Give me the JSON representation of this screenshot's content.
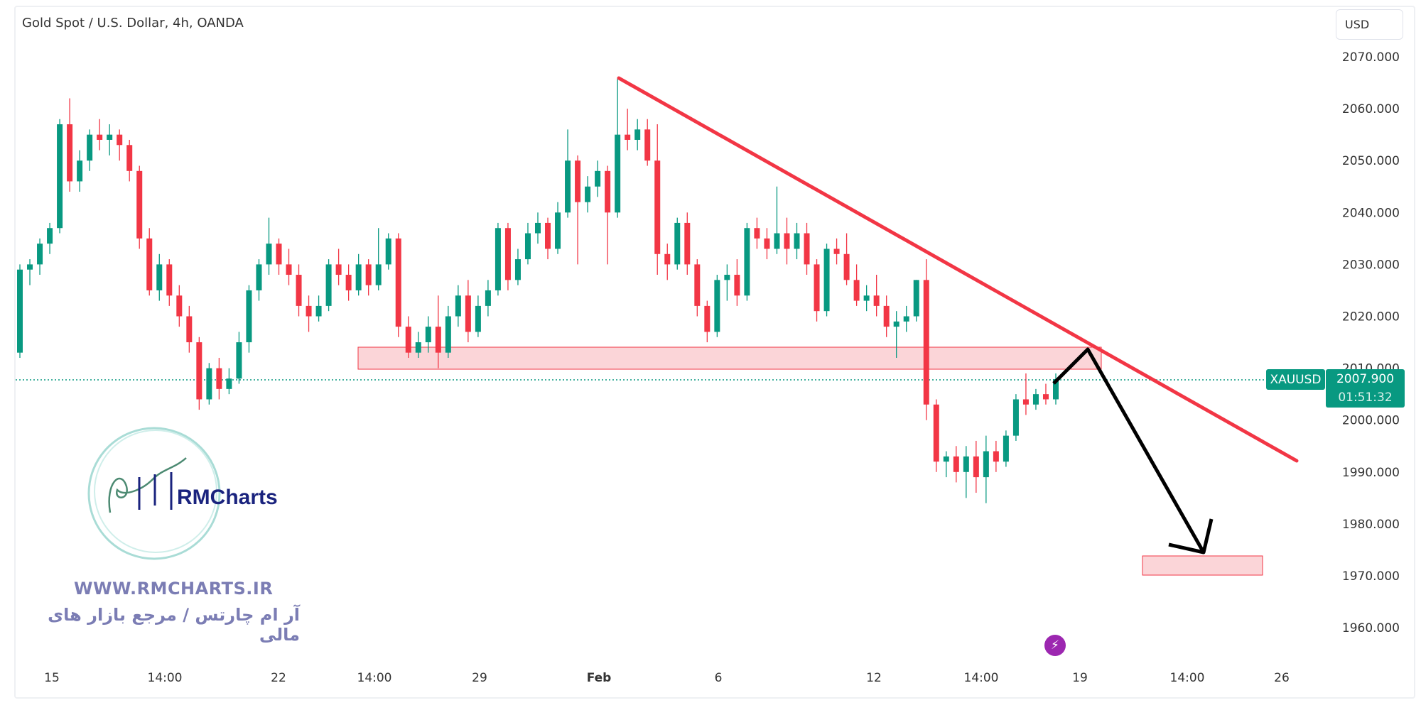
{
  "header": {
    "title": "Gold Spot / U.S. Dollar, 4h, OANDA",
    "currency": "USD"
  },
  "price_label": {
    "symbol": "XAUUSD",
    "price": "2007.900",
    "countdown": "01:51:32",
    "color": "#089981"
  },
  "logo": {
    "text": "RMCharts",
    "website": "WWW.RMCHARTS.IR",
    "tagline": "آر ام چارتس / مرجع بازار های مالی"
  },
  "colors": {
    "up": "#089981",
    "down": "#f23645",
    "trendline": "#f23645",
    "zone_fill": "#fbd5d8"
  },
  "chart_data": {
    "type": "candlestick",
    "title": "Gold Spot / U.S. Dollar, 4h, OANDA",
    "ylim": [
      1953,
      2075
    ],
    "y_ticks": [
      "2070.000",
      "2060.000",
      "2050.000",
      "2040.000",
      "2030.000",
      "2020.000",
      "2010.000",
      "2000.000",
      "1990.000",
      "1980.000",
      "1970.000",
      "1960.000"
    ],
    "x_ticks": [
      "15",
      "14:00",
      "22",
      "14:00",
      "29",
      "Feb",
      "6",
      "12",
      "14:00",
      "19",
      "14:00",
      "26"
    ],
    "last_price": 2007.9,
    "ohlc": [
      [
        2013,
        2030,
        2012,
        2029
      ],
      [
        2029,
        2031,
        2026,
        2030
      ],
      [
        2030,
        2035,
        2028,
        2034
      ],
      [
        2034,
        2038,
        2032,
        2037
      ],
      [
        2037,
        2058,
        2036,
        2057
      ],
      [
        2057,
        2062,
        2044,
        2046
      ],
      [
        2046,
        2052,
        2044,
        2050
      ],
      [
        2050,
        2056,
        2048,
        2055
      ],
      [
        2055,
        2058,
        2052,
        2054
      ],
      [
        2054,
        2057,
        2051,
        2055
      ],
      [
        2055,
        2056,
        2050,
        2053
      ],
      [
        2053,
        2054,
        2046,
        2048
      ],
      [
        2048,
        2049,
        2033,
        2035
      ],
      [
        2035,
        2037,
        2024,
        2025
      ],
      [
        2025,
        2032,
        2023,
        2030
      ],
      [
        2030,
        2031,
        2022,
        2024
      ],
      [
        2024,
        2026,
        2018,
        2020
      ],
      [
        2020,
        2022,
        2013,
        2015
      ],
      [
        2015,
        2016,
        2002,
        2004
      ],
      [
        2004,
        2011,
        2003,
        2010
      ],
      [
        2010,
        2012,
        2004,
        2006
      ],
      [
        2006,
        2010,
        2005,
        2008
      ],
      [
        2008,
        2017,
        2007,
        2015
      ],
      [
        2015,
        2026,
        2013,
        2025
      ],
      [
        2025,
        2031,
        2023,
        2030
      ],
      [
        2030,
        2039,
        2028,
        2034
      ],
      [
        2034,
        2035,
        2028,
        2030
      ],
      [
        2030,
        2033,
        2026,
        2028
      ],
      [
        2028,
        2030,
        2020,
        2022
      ],
      [
        2022,
        2024,
        2017,
        2020
      ],
      [
        2020,
        2024,
        2019,
        2022
      ],
      [
        2022,
        2031,
        2021,
        2030
      ],
      [
        2030,
        2033,
        2026,
        2028
      ],
      [
        2028,
        2030,
        2023,
        2025
      ],
      [
        2025,
        2032,
        2024,
        2030
      ],
      [
        2030,
        2031,
        2024,
        2026
      ],
      [
        2026,
        2037,
        2025,
        2030
      ],
      [
        2030,
        2036,
        2029,
        2035
      ],
      [
        2035,
        2036,
        2016,
        2018
      ],
      [
        2018,
        2020,
        2012,
        2013
      ],
      [
        2013,
        2017,
        2012,
        2015
      ],
      [
        2015,
        2020,
        2013,
        2018
      ],
      [
        2018,
        2024,
        2010,
        2013
      ],
      [
        2013,
        2022,
        2012,
        2020
      ],
      [
        2020,
        2026,
        2018,
        2024
      ],
      [
        2024,
        2027,
        2015,
        2017
      ],
      [
        2017,
        2024,
        2016,
        2022
      ],
      [
        2022,
        2027,
        2020,
        2025
      ],
      [
        2025,
        2038,
        2024,
        2037
      ],
      [
        2037,
        2038,
        2025,
        2027
      ],
      [
        2027,
        2033,
        2026,
        2031
      ],
      [
        2031,
        2038,
        2030,
        2036
      ],
      [
        2036,
        2040,
        2034,
        2038
      ],
      [
        2038,
        2039,
        2031,
        2033
      ],
      [
        2033,
        2042,
        2032,
        2040
      ],
      [
        2040,
        2056,
        2039,
        2050
      ],
      [
        2050,
        2051,
        2030,
        2042
      ],
      [
        2042,
        2047,
        2040,
        2045
      ],
      [
        2045,
        2050,
        2043,
        2048
      ],
      [
        2048,
        2049,
        2030,
        2040
      ],
      [
        2040,
        2066,
        2039,
        2055
      ],
      [
        2055,
        2060,
        2052,
        2054
      ],
      [
        2054,
        2058,
        2052,
        2056
      ],
      [
        2056,
        2058,
        2049,
        2050
      ],
      [
        2050,
        2057,
        2028,
        2032
      ],
      [
        2032,
        2034,
        2027,
        2030
      ],
      [
        2030,
        2039,
        2029,
        2038
      ],
      [
        2038,
        2040,
        2028,
        2030
      ],
      [
        2030,
        2031,
        2020,
        2022
      ],
      [
        2022,
        2023,
        2015,
        2017
      ],
      [
        2017,
        2028,
        2016,
        2027
      ],
      [
        2027,
        2030,
        2023,
        2028
      ],
      [
        2028,
        2031,
        2022,
        2024
      ],
      [
        2024,
        2038,
        2023,
        2037
      ],
      [
        2037,
        2039,
        2033,
        2035
      ],
      [
        2035,
        2037,
        2031,
        2033
      ],
      [
        2033,
        2045,
        2032,
        2036
      ],
      [
        2036,
        2039,
        2030,
        2033
      ],
      [
        2033,
        2038,
        2031,
        2036
      ],
      [
        2036,
        2038,
        2028,
        2030
      ],
      [
        2030,
        2031,
        2019,
        2021
      ],
      [
        2021,
        2034,
        2020,
        2033
      ],
      [
        2033,
        2035,
        2030,
        2032
      ],
      [
        2032,
        2036,
        2026,
        2027
      ],
      [
        2027,
        2030,
        2022,
        2023
      ],
      [
        2023,
        2026,
        2021,
        2024
      ],
      [
        2024,
        2028,
        2020,
        2022
      ],
      [
        2022,
        2024,
        2016,
        2018
      ],
      [
        2018,
        2021,
        2012,
        2019
      ],
      [
        2019,
        2022,
        2017,
        2020
      ],
      [
        2020,
        2027,
        2019,
        2027
      ],
      [
        2027,
        2031,
        2000,
        2003
      ],
      [
        2003,
        2004,
        1990,
        1992
      ],
      [
        1992,
        1994,
        1989,
        1993
      ],
      [
        1993,
        1995,
        1988,
        1990
      ],
      [
        1990,
        1995,
        1985,
        1993
      ],
      [
        1993,
        1996,
        1986,
        1989
      ],
      [
        1989,
        1997,
        1984,
        1994
      ],
      [
        1994,
        1996,
        1990,
        1992
      ],
      [
        1992,
        1998,
        1991,
        1997
      ],
      [
        1997,
        2005,
        1996,
        2004
      ],
      [
        2004,
        2009,
        2001,
        2003
      ],
      [
        2003,
        2006,
        2002,
        2005
      ],
      [
        2005,
        2007,
        2003,
        2004
      ],
      [
        2004,
        2009,
        2003,
        2007.9
      ]
    ]
  }
}
